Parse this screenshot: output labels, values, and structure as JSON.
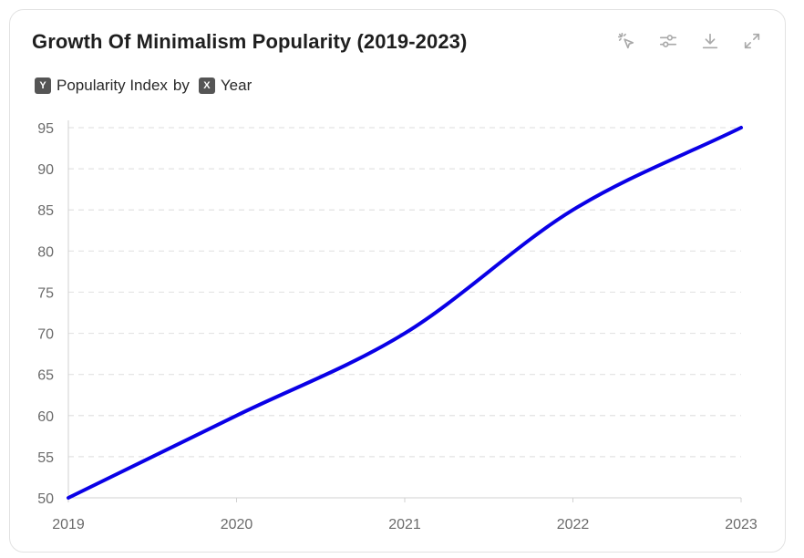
{
  "header": {
    "title": "Growth Of Minimalism Popularity (2019-2023)",
    "tools": [
      {
        "name": "select-icon"
      },
      {
        "name": "filter-settings-icon"
      },
      {
        "name": "download-icon"
      },
      {
        "name": "expand-icon"
      }
    ]
  },
  "legend": {
    "y_badge": "Y",
    "y_label": "Popularity Index",
    "by": "by",
    "x_badge": "X",
    "x_label": "Year"
  },
  "colors": {
    "line": "#0a00e6",
    "grid": "#e3e3e3",
    "axis": "#d0d0d0"
  },
  "chart_data": {
    "type": "line",
    "title": "Growth Of Minimalism Popularity (2019-2023)",
    "xlabel": "Year",
    "ylabel": "Popularity Index",
    "categories": [
      "2019",
      "2020",
      "2021",
      "2022",
      "2023"
    ],
    "series": [
      {
        "name": "Popularity Index",
        "values": [
          50,
          60,
          70,
          85,
          95
        ]
      }
    ],
    "ylim": [
      50,
      95
    ],
    "yticks": [
      50,
      55,
      60,
      65,
      70,
      75,
      80,
      85,
      90,
      95
    ],
    "grid": true,
    "smooth": true
  }
}
